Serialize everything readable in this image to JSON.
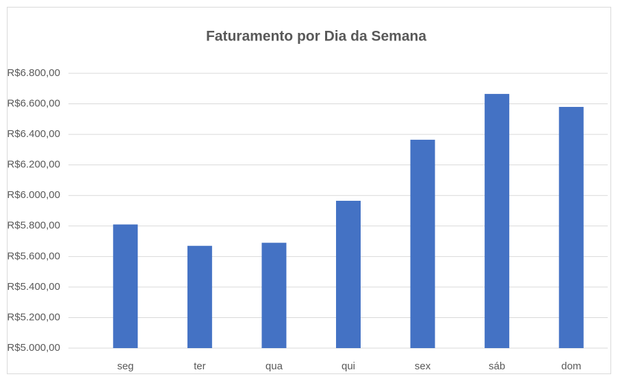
{
  "chart_data": {
    "type": "bar",
    "title": "Faturamento por Dia da Semana",
    "categories": [
      "seg",
      "ter",
      "qua",
      "qui",
      "sex",
      "sáb",
      "dom"
    ],
    "values": [
      5810,
      5670,
      5690,
      5965,
      6365,
      6665,
      6580
    ],
    "color": "#4472c4",
    "ylim": [
      5000,
      6800
    ],
    "yticks": [
      {
        "value": 5000,
        "label": "R$5.000,00"
      },
      {
        "value": 5200,
        "label": "R$5.200,00"
      },
      {
        "value": 5400,
        "label": "R$5.400,00"
      },
      {
        "value": 5600,
        "label": "R$5.600,00"
      },
      {
        "value": 5800,
        "label": "R$5.800,00"
      },
      {
        "value": 6000,
        "label": "R$6.000,00"
      },
      {
        "value": 6200,
        "label": "R$6.200,00"
      },
      {
        "value": 6400,
        "label": "R$6.400,00"
      },
      {
        "value": 6600,
        "label": "R$6.600,00"
      },
      {
        "value": 6800,
        "label": "R$6.800,00"
      }
    ],
    "grid": true
  }
}
